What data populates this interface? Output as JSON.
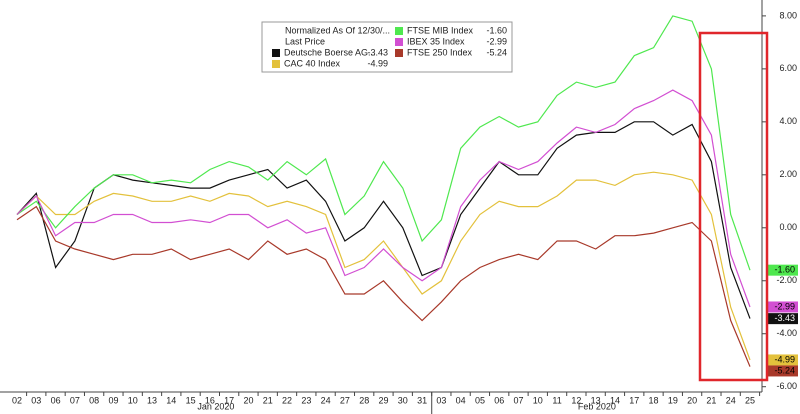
{
  "chart_data": {
    "type": "line",
    "legend_title": "Normalized As Of 12/30/...",
    "legend_subtitle": "Last Price",
    "x_groups": [
      "Jan 2020",
      "Feb 2020"
    ],
    "categories": [
      "02",
      "03",
      "06",
      "07",
      "08",
      "09",
      "10",
      "13",
      "14",
      "15",
      "16",
      "17",
      "20",
      "21",
      "22",
      "23",
      "24",
      "27",
      "28",
      "29",
      "30",
      "31",
      "03",
      "04",
      "05",
      "06",
      "07",
      "10",
      "11",
      "12",
      "13",
      "14",
      "17",
      "18",
      "19",
      "20",
      "21",
      "24",
      "25"
    ],
    "ylim": [
      -6.2,
      8.6
    ],
    "yticks": [
      {
        "value": 8,
        "label": "8.00"
      },
      {
        "value": 6,
        "label": "6.00"
      },
      {
        "value": 4,
        "label": "4.00"
      },
      {
        "value": 2,
        "label": "2.00"
      },
      {
        "value": 0,
        "label": "0.00"
      },
      {
        "value": -2,
        "label": "-2.00"
      },
      {
        "value": -4,
        "label": "-4.00"
      },
      {
        "value": -6,
        "label": "-6.00"
      }
    ],
    "grid": false,
    "series": [
      {
        "name": "Deutsche Boerse AG...",
        "color": "#111111",
        "last_price": {
          "value": -3.43,
          "label": "-3.43"
        },
        "values": [
          0.5,
          1.3,
          -1.5,
          -0.5,
          1.5,
          2,
          1.8,
          1.7,
          1.6,
          1.5,
          1.5,
          1.8,
          2.0,
          2.2,
          1.5,
          1.8,
          1.0,
          -0.5,
          0,
          1.0,
          0,
          -1.8,
          -1.5,
          0.5,
          1.5,
          2.5,
          2.0,
          2.0,
          3.0,
          3.5,
          3.6,
          3.6,
          4,
          4,
          3.5,
          3.9,
          2.5,
          -1.5,
          -3.43
        ]
      },
      {
        "name": "CAC 40 Index",
        "color": "#e3c13c",
        "last_price": {
          "value": -4.99,
          "label": "-4.99"
        },
        "values": [
          0.5,
          1.2,
          0.5,
          0.5,
          1.0,
          1.3,
          1.2,
          1.0,
          1.0,
          1.2,
          1.0,
          1.3,
          1.2,
          0.8,
          1.0,
          0.8,
          0.5,
          -1.5,
          -1.2,
          -0.5,
          -1.5,
          -2.5,
          -2.0,
          -0.5,
          0.5,
          1.0,
          0.8,
          0.8,
          1.2,
          1.8,
          1.8,
          1.6,
          2.0,
          2.1,
          2.0,
          1.8,
          0.5,
          -3.0,
          -4.99
        ]
      },
      {
        "name": "FTSE MIB Index",
        "color": "#4fe84f",
        "last_price": {
          "value": -1.6,
          "label": "-1.60"
        },
        "values": [
          0.5,
          1.0,
          0,
          0.8,
          1.5,
          2,
          2,
          1.7,
          1.8,
          1.7,
          2.2,
          2.5,
          2.3,
          1.8,
          2.5,
          2,
          2.6,
          0.5,
          1.2,
          2.5,
          1.5,
          -0.5,
          0.3,
          3,
          3.8,
          4.2,
          3.8,
          4,
          5,
          5.5,
          5.3,
          5.5,
          6.5,
          6.8,
          8,
          7.8,
          6,
          0.5,
          -1.6
        ]
      },
      {
        "name": "IBEX 35 Index",
        "color": "#d24fd2",
        "last_price": {
          "value": -2.99,
          "label": "-2.99"
        },
        "values": [
          0.5,
          1.2,
          -0.3,
          0.2,
          0.2,
          0.5,
          0.5,
          0.2,
          0.2,
          0.3,
          0.2,
          0.5,
          0.5,
          0,
          0.3,
          -0.2,
          0,
          -1.8,
          -1.5,
          -0.8,
          -1.5,
          -2,
          -1.5,
          0.8,
          1.8,
          2.5,
          2.2,
          2.5,
          3.2,
          3.8,
          3.6,
          3.9,
          4.5,
          4.8,
          5.2,
          4.8,
          3.5,
          -1.0,
          -2.99
        ]
      },
      {
        "name": "FTSE 250 Index",
        "color": "#a8392a",
        "last_price": {
          "value": -5.24,
          "label": "-5.24"
        },
        "values": [
          0.3,
          0.8,
          -0.5,
          -0.8,
          -1.0,
          -1.2,
          -1.0,
          -1.0,
          -0.8,
          -1.2,
          -1.0,
          -0.8,
          -1.2,
          -0.5,
          -1.0,
          -0.8,
          -1.2,
          -2.5,
          -2.5,
          -2.0,
          -2.8,
          -3.5,
          -2.8,
          -2.0,
          -1.5,
          -1.2,
          -1.0,
          -1.2,
          -0.5,
          -0.5,
          -0.8,
          -0.3,
          -0.3,
          -0.2,
          0,
          0.2,
          -0.5,
          -3.5,
          -5.24
        ]
      }
    ]
  }
}
